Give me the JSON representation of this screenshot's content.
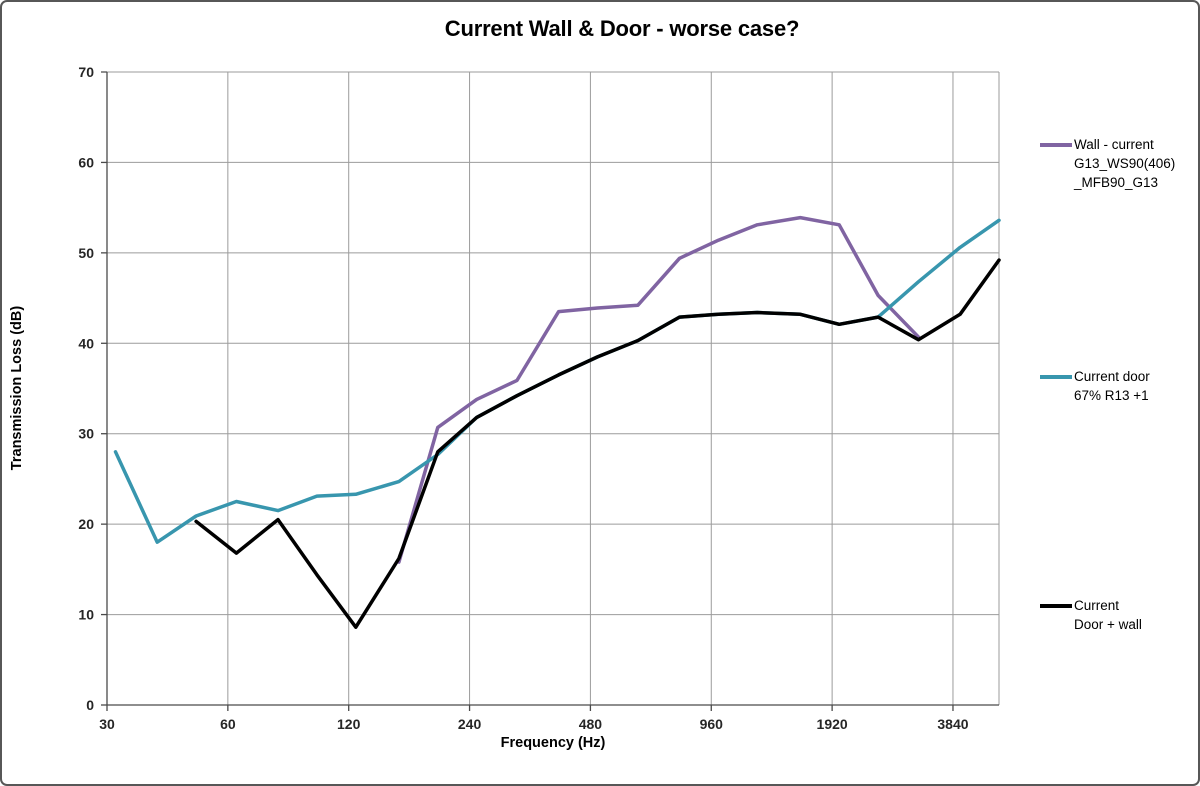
{
  "chart_data": {
    "type": "line",
    "title": "Current Wall & Door - worse case?",
    "xlabel": "Frequency (Hz)",
    "ylabel": "Transmission Loss (dB)",
    "x_axis": {
      "scale": "log",
      "min": 30,
      "max": 5000,
      "ticks": [
        30,
        60,
        120,
        240,
        480,
        960,
        1920,
        3840
      ],
      "grid": true
    },
    "y_axis": {
      "min": 0,
      "max": 70,
      "step": 10,
      "ticks": [
        0,
        10,
        20,
        30,
        40,
        50,
        60,
        70
      ],
      "grid": true
    },
    "frequencies_hz": [
      31.5,
      40,
      50,
      63,
      80,
      100,
      125,
      160,
      200,
      250,
      315,
      400,
      500,
      630,
      800,
      1000,
      1250,
      1600,
      2000,
      2500,
      3150,
      4000,
      5000
    ],
    "series": [
      {
        "name": "Wall - current G13_WS90(406)_MFB90_G13",
        "legend_lines": [
          "Wall - current",
          "G13_WS90(406)",
          "_MFB90_G13"
        ],
        "color": "#8064A2",
        "values": [
          null,
          null,
          null,
          null,
          null,
          null,
          null,
          15.8,
          30.7,
          33.8,
          35.9,
          43.5,
          43.9,
          44.2,
          49.4,
          51.4,
          53.1,
          53.9,
          53.1,
          45.3,
          40.7,
          null,
          null
        ]
      },
      {
        "name": "Current door 67% R13 +1",
        "legend_lines": [
          "Current door",
          "67% R13 +1"
        ],
        "color": "#3896AE",
        "values": [
          28.0,
          18.0,
          20.9,
          22.5,
          21.5,
          23.1,
          23.3,
          24.7,
          27.7,
          31.8,
          34.2,
          36.5,
          38.5,
          40.3,
          42.9,
          43.2,
          43.4,
          43.2,
          42.1,
          42.9,
          46.8,
          50.6,
          53.6
        ]
      },
      {
        "name": "Current Door + wall",
        "legend_lines": [
          "Current",
          "Door + wall"
        ],
        "color": "#000000",
        "values": [
          null,
          null,
          20.3,
          16.8,
          20.5,
          14.4,
          8.6,
          16.2,
          28.0,
          31.8,
          34.2,
          36.5,
          38.5,
          40.3,
          42.9,
          43.2,
          43.4,
          43.2,
          42.1,
          42.9,
          40.4,
          43.2,
          49.2
        ]
      }
    ],
    "legend_position": "right",
    "style": {
      "grid_color": "#9B9B9B",
      "axis_color": "#4A4A4A",
      "tick_label_color": "#262626",
      "line_width": 3.5,
      "background": "#FFFFFF"
    }
  }
}
